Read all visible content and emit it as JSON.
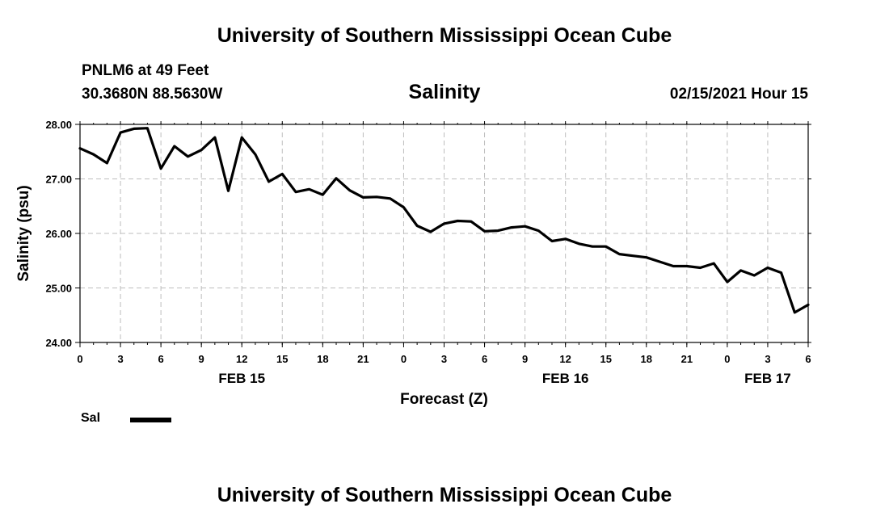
{
  "header": {
    "title": "University of Southern Mississippi Ocean Cube",
    "station": "PNLM6 at 49 Feet",
    "coords": "30.3680N 88.5630W",
    "datetime": "02/15/2021 Hour 15"
  },
  "footer": {
    "title": "University of Southern Mississippi Ocean Cube"
  },
  "legend": {
    "label": "Sal"
  },
  "chart_data": {
    "type": "line",
    "title": "Salinity",
    "xlabel": "Forecast (Z)",
    "ylabel": "Salinity (psu)",
    "ylim": [
      24.0,
      28.0
    ],
    "yticks": [
      "24.00",
      "25.00",
      "26.00",
      "27.00",
      "28.00"
    ],
    "xlim": [
      0,
      54
    ],
    "x_tick_hours": [
      0,
      3,
      6,
      9,
      12,
      15,
      18,
      21,
      24,
      27,
      30,
      33,
      36,
      39,
      42,
      45,
      48,
      51,
      54
    ],
    "x_tick_labels": [
      "0",
      "3",
      "6",
      "9",
      "12",
      "15",
      "18",
      "21",
      "0",
      "3",
      "6",
      "9",
      "12",
      "15",
      "18",
      "21",
      "0",
      "3",
      "6"
    ],
    "date_labels": [
      {
        "hour": 12,
        "label": "FEB 15"
      },
      {
        "hour": 36,
        "label": "FEB 16"
      },
      {
        "hour": 51,
        "label": "FEB 17"
      }
    ],
    "grid": true,
    "series": [
      {
        "name": "Sal",
        "color": "#000000",
        "x": [
          0,
          1,
          2,
          3,
          4,
          5,
          6,
          7,
          8,
          9,
          10,
          11,
          12,
          13,
          14,
          15,
          16,
          17,
          18,
          19,
          20,
          21,
          22,
          23,
          24,
          25,
          26,
          27,
          28,
          29,
          30,
          31,
          32,
          33,
          34,
          35,
          36,
          37,
          38,
          39,
          40,
          41,
          42,
          43,
          44,
          45,
          46,
          47,
          48,
          49,
          50,
          51,
          52,
          53,
          54
        ],
        "values": [
          27.56,
          27.45,
          27.29,
          27.85,
          27.92,
          27.93,
          27.19,
          27.6,
          27.41,
          27.53,
          27.76,
          26.78,
          27.76,
          27.45,
          26.95,
          27.09,
          26.76,
          26.81,
          26.71,
          27.01,
          26.79,
          26.66,
          26.67,
          26.64,
          26.48,
          26.14,
          26.03,
          26.18,
          26.23,
          26.22,
          26.04,
          26.05,
          26.11,
          26.13,
          26.05,
          25.86,
          25.9,
          25.81,
          25.76,
          25.76,
          25.62,
          25.59,
          25.56,
          25.48,
          25.4,
          25.4,
          25.37,
          25.45,
          25.11,
          25.32,
          25.23,
          25.37,
          25.28,
          24.55,
          24.69
        ]
      }
    ]
  }
}
